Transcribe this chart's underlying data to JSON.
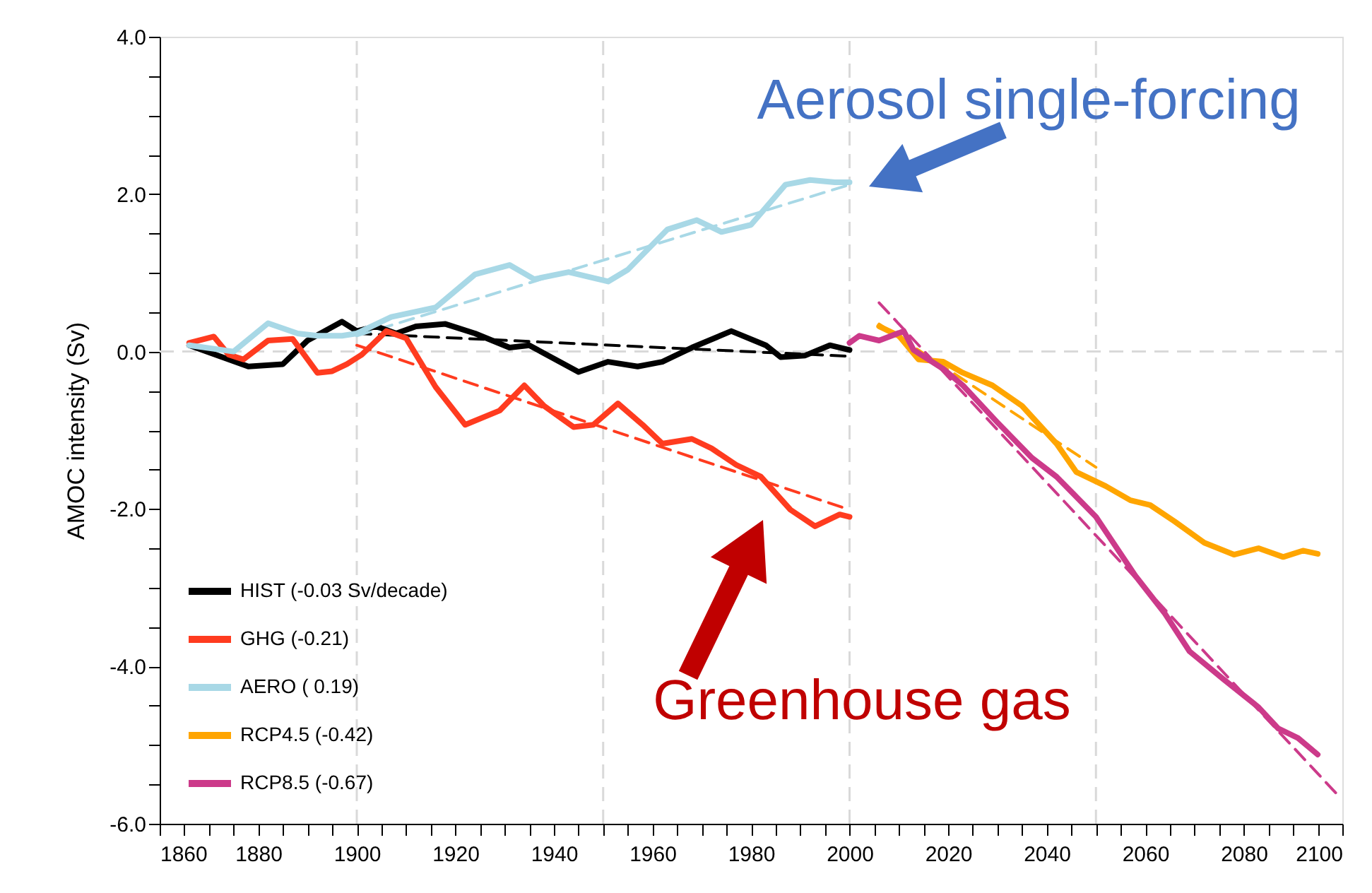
{
  "chart_data": {
    "type": "line",
    "ylabel": "AMOC intensity (Sv)",
    "xlim": [
      1860,
      2100
    ],
    "ylim": [
      -6,
      4
    ],
    "xticks": [
      1860,
      {
        "value": 1865,
        "label": null
      },
      {
        "value": 1870,
        "label": null
      },
      {
        "value": 1875,
        "label": null
      },
      1880,
      {
        "value": 1885,
        "label": null
      },
      {
        "value": 1890,
        "label": null
      },
      {
        "value": 1895,
        "label": null
      },
      1900,
      {
        "value": 1905,
        "label": null
      },
      {
        "value": 1910,
        "label": null
      },
      {
        "value": 1915,
        "label": null
      },
      1920,
      {
        "value": 1925,
        "label": null
      },
      {
        "value": 1930,
        "label": null
      },
      {
        "value": 1935,
        "label": null
      },
      1940,
      {
        "value": 1945,
        "label": null
      },
      {
        "value": 1950,
        "label": null
      },
      {
        "value": 1955,
        "label": null
      },
      1960,
      {
        "value": 1965,
        "label": null
      },
      {
        "value": 1970,
        "label": null
      },
      {
        "value": 1975,
        "label": null
      },
      1980,
      {
        "value": 1985,
        "label": null
      },
      {
        "value": 1990,
        "label": null
      },
      {
        "value": 1995,
        "label": null
      },
      2000,
      {
        "value": 2005,
        "label": null
      },
      {
        "value": 2010,
        "label": null
      },
      {
        "value": 2015,
        "label": null
      },
      2020,
      {
        "value": 2025,
        "label": null
      },
      {
        "value": 2030,
        "label": null
      },
      {
        "value": 2035,
        "label": null
      },
      2040,
      {
        "value": 2045,
        "label": null
      },
      {
        "value": 2050,
        "label": null
      },
      {
        "value": 2055,
        "label": null
      },
      2060,
      {
        "value": 2065,
        "label": null
      },
      {
        "value": 2070,
        "label": null
      },
      {
        "value": 2075,
        "label": null
      },
      2080,
      {
        "value": 2085,
        "label": null
      },
      {
        "value": 2090,
        "label": null
      },
      {
        "value": 2095,
        "label": null
      },
      2100
    ],
    "yticks": [
      {
        "value": -6,
        "label": "-6.0"
      },
      {
        "value": -5.5,
        "label": null
      },
      {
        "value": -5,
        "label": null
      },
      {
        "value": -4.5,
        "label": null
      },
      {
        "value": -4,
        "label": "-4.0"
      },
      {
        "value": -3.5,
        "label": null
      },
      {
        "value": -3,
        "label": null
      },
      {
        "value": -2.5,
        "label": null
      },
      {
        "value": -2,
        "label": "-2.0"
      },
      {
        "value": -1.5,
        "label": null
      },
      {
        "value": -1,
        "label": null
      },
      {
        "value": -0.5,
        "label": null
      },
      {
        "value": 0,
        "label": "0.0"
      },
      {
        "value": 0.5,
        "label": null
      },
      {
        "value": 1,
        "label": null
      },
      {
        "value": 1.5,
        "label": null
      },
      {
        "value": 2,
        "label": "2.0"
      },
      {
        "value": 2.5,
        "label": null
      },
      {
        "value": 3,
        "label": null
      },
      {
        "value": 3.5,
        "label": null
      },
      {
        "value": 4,
        "label": "4.0"
      }
    ],
    "grid": false,
    "legend": "bottom left",
    "marker": "none",
    "ref_lines": [
      {
        "axis": "x",
        "value": 1900,
        "color": "#d9d9d9",
        "line_style": "dashed"
      },
      {
        "axis": "x",
        "value": 1950,
        "color": "#d9d9d9",
        "line_style": "dashed"
      },
      {
        "axis": "x",
        "value": 2000,
        "color": "#d9d9d9",
        "line_style": "dashed"
      },
      {
        "axis": "x",
        "value": 2050,
        "color": "#d9d9d9",
        "line_style": "dashed"
      },
      {
        "axis": "y",
        "value": 0,
        "color": "#d9d9d9",
        "line_style": "dashed"
      }
    ],
    "series": [
      {
        "type": "line",
        "color": "#000000",
        "line_style": "dashed",
        "x": [
          1900,
          2000
        ],
        "values": [
          0.23,
          -0.06
        ]
      },
      {
        "type": "line",
        "color": "#ff3b1f",
        "line_style": "dashed",
        "x": [
          1900,
          2000
        ],
        "values": [
          0.08,
          -2.01
        ]
      },
      {
        "type": "line",
        "color": "#a8d8e6",
        "line_style": "dashed",
        "x": [
          1900,
          2000
        ],
        "values": [
          0.2,
          2.12
        ]
      },
      {
        "type": "line",
        "color": "#ffa500",
        "line_style": "dashed",
        "x": [
          2006,
          2050
        ],
        "values": [
          0.35,
          -1.47
        ]
      },
      {
        "type": "line",
        "color": "#cc3a8a",
        "line_style": "dashed",
        "x": [
          2006,
          2099
        ],
        "values": [
          0.62,
          -5.63
        ]
      },
      {
        "name": "HIST (-0.03 Sv/decade)",
        "color": "#000000",
        "line_style": "solid",
        "x": [
          1866,
          1878,
          1885,
          1890,
          1897,
          1900,
          1904,
          1908,
          1912,
          1918,
          1924,
          1931,
          1935,
          1945,
          1951,
          1957,
          1962,
          1968,
          1976,
          1983,
          1986,
          1991,
          1996,
          2000
        ],
        "values": [
          0.08,
          -0.19,
          -0.16,
          0.14,
          0.38,
          0.26,
          0.32,
          0.23,
          0.32,
          0.35,
          0.23,
          0.05,
          0.08,
          -0.26,
          -0.13,
          -0.19,
          -0.13,
          0.05,
          0.26,
          0.08,
          -0.07,
          -0.05,
          0.08,
          0.02
        ]
      },
      {
        "name": "GHG (-0.21)",
        "color": "#ff3b1f",
        "line_style": "solid",
        "x": [
          1866,
          1871,
          1874,
          1877,
          1882,
          1887,
          1892,
          1895,
          1898,
          1901,
          1906,
          1910,
          1916,
          1922,
          1929,
          1934,
          1938,
          1944,
          1948,
          1953,
          1958,
          1962,
          1968,
          1972,
          1977,
          1982,
          1988,
          1993,
          1998,
          2000
        ],
        "values": [
          0.11,
          0.19,
          -0.04,
          -0.1,
          0.14,
          0.16,
          -0.27,
          -0.25,
          -0.16,
          -0.04,
          0.26,
          0.17,
          -0.45,
          -0.93,
          -0.75,
          -0.43,
          -0.69,
          -0.96,
          -0.93,
          -0.66,
          -0.93,
          -1.17,
          -1.11,
          -1.23,
          -1.44,
          -1.59,
          -2.01,
          -2.22,
          -2.07,
          -2.1
        ]
      },
      {
        "name": "AERO ( 0.19)",
        "color": "#a8d8e6",
        "line_style": "solid",
        "x": [
          1866,
          1875,
          1882,
          1888,
          1892,
          1897,
          1900,
          1907,
          1916,
          1924,
          1931,
          1936,
          1943,
          1951,
          1955,
          1963,
          1969,
          1974,
          1980,
          1987,
          1992,
          1997,
          2000
        ],
        "values": [
          0.08,
          0.0,
          0.36,
          0.23,
          0.2,
          0.2,
          0.23,
          0.44,
          0.56,
          0.98,
          1.1,
          0.92,
          1.01,
          0.89,
          1.04,
          1.55,
          1.67,
          1.52,
          1.61,
          2.12,
          2.18,
          2.15,
          2.15
        ]
      },
      {
        "name": "RCP4.5 (-0.42)",
        "color": "#ffa500",
        "line_style": "solid",
        "x": [
          2006,
          2010,
          2014,
          2019,
          2023,
          2029,
          2035,
          2042,
          2046,
          2052,
          2057,
          2061,
          2066,
          2072,
          2078,
          2083,
          2088,
          2092,
          2095
        ],
        "values": [
          0.32,
          0.2,
          -0.1,
          -0.13,
          -0.27,
          -0.43,
          -0.69,
          -1.17,
          -1.53,
          -1.71,
          -1.89,
          -1.95,
          -2.16,
          -2.43,
          -2.58,
          -2.5,
          -2.61,
          -2.53,
          -2.57
        ]
      },
      {
        "name": "RCP8.5 (-0.67)",
        "color": "#cc3a8a",
        "line_style": "solid",
        "x": [
          2000,
          2002,
          2006,
          2011,
          2013,
          2019,
          2023,
          2030,
          2037,
          2042,
          2050,
          2058,
          2064,
          2069,
          2076,
          2083,
          2087,
          2091,
          2095
        ],
        "values": [
          0.11,
          0.2,
          0.14,
          0.26,
          0.02,
          -0.22,
          -0.43,
          -0.9,
          -1.35,
          -1.59,
          -2.1,
          -2.85,
          -3.33,
          -3.81,
          -4.17,
          -4.52,
          -4.79,
          -4.91,
          -5.12
        ]
      }
    ],
    "annotations": [
      "Aerosol single-forcing",
      "Greenhouse gas"
    ]
  }
}
